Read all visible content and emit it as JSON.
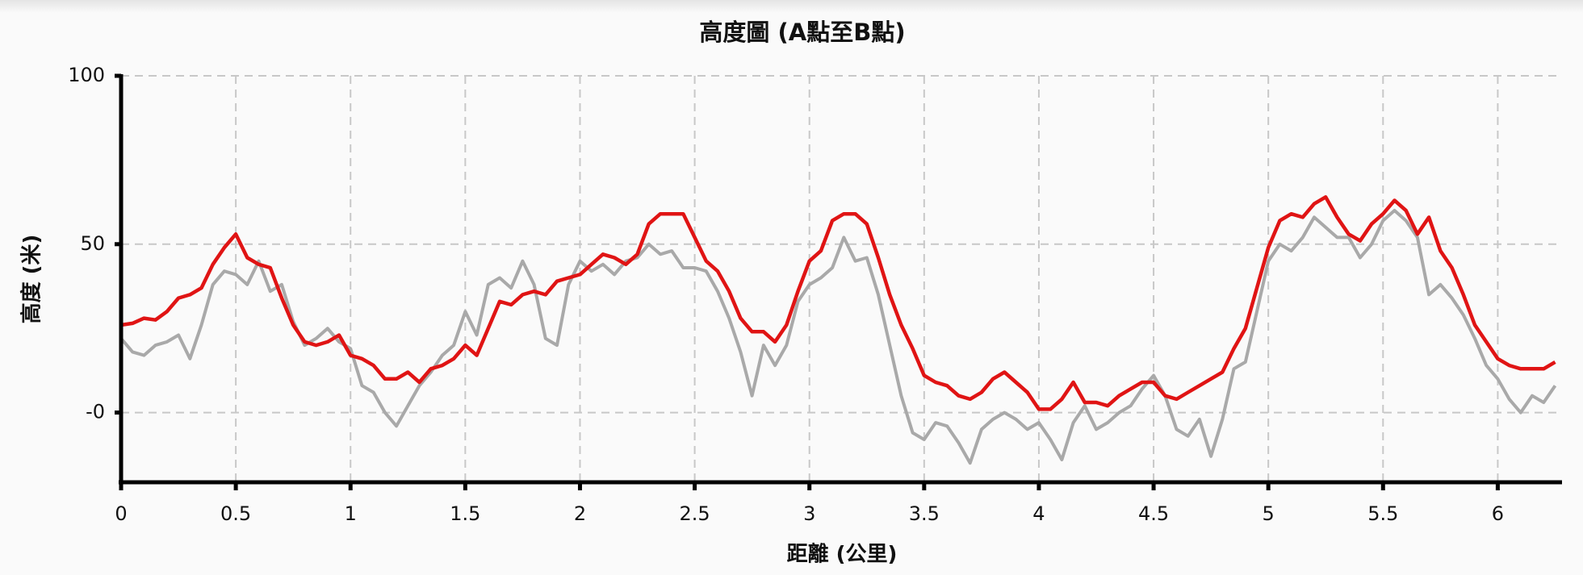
{
  "chart_data": {
    "type": "line",
    "title": "高度圖 (A點至B點)",
    "x_label": "距離 (公里)",
    "y_label": "高度 (米)",
    "x": [
      0,
      0.05,
      0.1,
      0.15,
      0.2,
      0.25,
      0.3,
      0.35,
      0.4,
      0.45,
      0.5,
      0.55,
      0.6,
      0.65,
      0.7,
      0.75,
      0.8,
      0.85,
      0.9,
      0.95,
      1,
      1.05,
      1.1,
      1.15,
      1.2,
      1.25,
      1.3,
      1.35,
      1.4,
      1.45,
      1.5,
      1.55,
      1.6,
      1.65,
      1.7,
      1.75,
      1.8,
      1.85,
      1.9,
      1.95,
      2,
      2.05,
      2.1,
      2.15,
      2.2,
      2.25,
      2.3,
      2.35,
      2.4,
      2.45,
      2.5,
      2.55,
      2.6,
      2.65,
      2.7,
      2.75,
      2.8,
      2.85,
      2.9,
      2.95,
      3,
      3.05,
      3.1,
      3.15,
      3.2,
      3.25,
      3.3,
      3.35,
      3.4,
      3.45,
      3.5,
      3.55,
      3.6,
      3.65,
      3.7,
      3.75,
      3.8,
      3.85,
      3.9,
      3.95,
      4,
      4.05,
      4.1,
      4.15,
      4.2,
      4.25,
      4.3,
      4.35,
      4.4,
      4.45,
      4.5,
      4.55,
      4.6,
      4.65,
      4.7,
      4.75,
      4.8,
      4.85,
      4.9,
      4.95,
      5,
      5.05,
      5.1,
      5.15,
      5.2,
      5.25,
      5.3,
      5.35,
      5.4,
      5.45,
      5.5,
      5.55,
      5.6,
      5.65,
      5.7,
      5.75,
      5.8,
      5.85,
      5.9,
      5.95,
      6,
      6.05,
      6.1,
      6.15,
      6.2,
      6.25
    ],
    "series": [
      {
        "color": "#a9a9a9",
        "values": [
          22,
          18,
          17,
          20,
          21,
          23,
          16,
          26,
          38,
          42,
          41,
          38,
          45,
          36,
          38,
          27,
          20,
          22,
          25,
          21,
          19,
          8,
          6,
          0,
          -4,
          2,
          8,
          12,
          17,
          20,
          30,
          23,
          38,
          40,
          37,
          45,
          38,
          22,
          20,
          38,
          45,
          42,
          44,
          41,
          45,
          46,
          50,
          47,
          48,
          43,
          43,
          42,
          36,
          28,
          18,
          5,
          20,
          14,
          20,
          33,
          38,
          40,
          43,
          52,
          45,
          46,
          35,
          20,
          5,
          -6,
          -8,
          -3,
          -4,
          -9,
          -15,
          -5,
          -2,
          0,
          -2,
          -5,
          -3,
          -8,
          -14,
          -3,
          2,
          -5,
          -3,
          0,
          2,
          7,
          11,
          5,
          -5,
          -7,
          -2,
          -13,
          -2,
          13,
          15,
          30,
          45,
          50,
          48,
          52,
          58,
          55,
          52,
          52,
          46,
          50,
          57,
          60,
          57,
          52,
          35,
          38,
          34,
          29,
          22,
          14,
          10,
          4,
          0,
          5,
          3,
          8
        ]
      },
      {
        "color": "#e01414",
        "values": [
          26,
          26.5,
          28,
          27.5,
          30,
          34,
          35,
          37,
          44,
          49,
          53,
          46,
          44,
          43,
          34,
          26,
          21,
          20,
          21,
          23,
          17,
          16,
          14,
          10,
          10,
          12,
          9,
          13,
          14,
          16,
          20,
          17,
          25,
          33,
          32,
          35,
          36,
          35,
          39,
          40,
          41,
          44,
          47,
          46,
          44,
          47,
          56,
          59,
          59,
          59,
          52,
          45,
          42,
          36,
          28,
          24,
          24,
          21,
          26,
          36,
          45,
          48,
          57,
          59,
          59,
          56,
          46,
          35,
          26,
          19,
          11,
          9,
          8,
          5,
          4,
          6,
          10,
          12,
          9,
          6,
          1,
          1,
          4,
          9,
          3,
          3,
          2,
          5,
          7,
          9,
          9,
          5,
          4,
          6,
          8,
          10,
          12,
          19,
          25,
          37,
          49,
          57,
          59,
          58,
          62,
          64,
          58,
          53,
          51,
          56,
          59,
          63,
          60,
          53,
          58,
          48,
          43,
          35,
          26,
          21,
          16,
          14,
          13,
          13,
          13,
          15
        ]
      }
    ],
    "xlim": [
      0,
      6.28
    ],
    "ylim": [
      -20.7,
      100
    ],
    "xticks": [
      0,
      0.5,
      1,
      1.5,
      2,
      2.5,
      3,
      3.5,
      4,
      4.5,
      5,
      5.5,
      6
    ],
    "yticks": [
      {
        "value": 0,
        "label": "-0"
      },
      50,
      100
    ],
    "grid": true
  }
}
